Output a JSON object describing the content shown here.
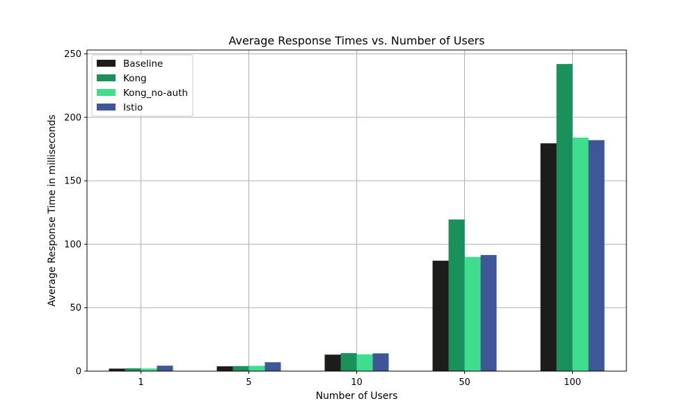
{
  "chart_data": {
    "type": "bar",
    "title": "Average Response Times vs. Number of Users",
    "xlabel": "Number of Users",
    "ylabel": "Average Response Time in milliseconds",
    "categories": [
      "1",
      "5",
      "10",
      "50",
      "100"
    ],
    "ylim": [
      0,
      253
    ],
    "yticks": [
      0,
      50,
      100,
      150,
      200,
      250
    ],
    "grid": true,
    "legend_position": "top-left",
    "series": [
      {
        "name": "Baseline",
        "color": "#1c1d1b",
        "values": [
          2.0,
          3.8,
          13.0,
          87.0,
          179.5
        ]
      },
      {
        "name": "Kong",
        "color": "#1a915a",
        "values": [
          2.2,
          4.0,
          14.2,
          119.5,
          242.0
        ]
      },
      {
        "name": "Kong_no-auth",
        "color": "#3ede8e",
        "values": [
          2.1,
          4.2,
          13.2,
          90.0,
          184.0
        ]
      },
      {
        "name": "Istio",
        "color": "#3f5799",
        "values": [
          4.3,
          7.0,
          14.0,
          91.5,
          182.0
        ]
      }
    ]
  }
}
